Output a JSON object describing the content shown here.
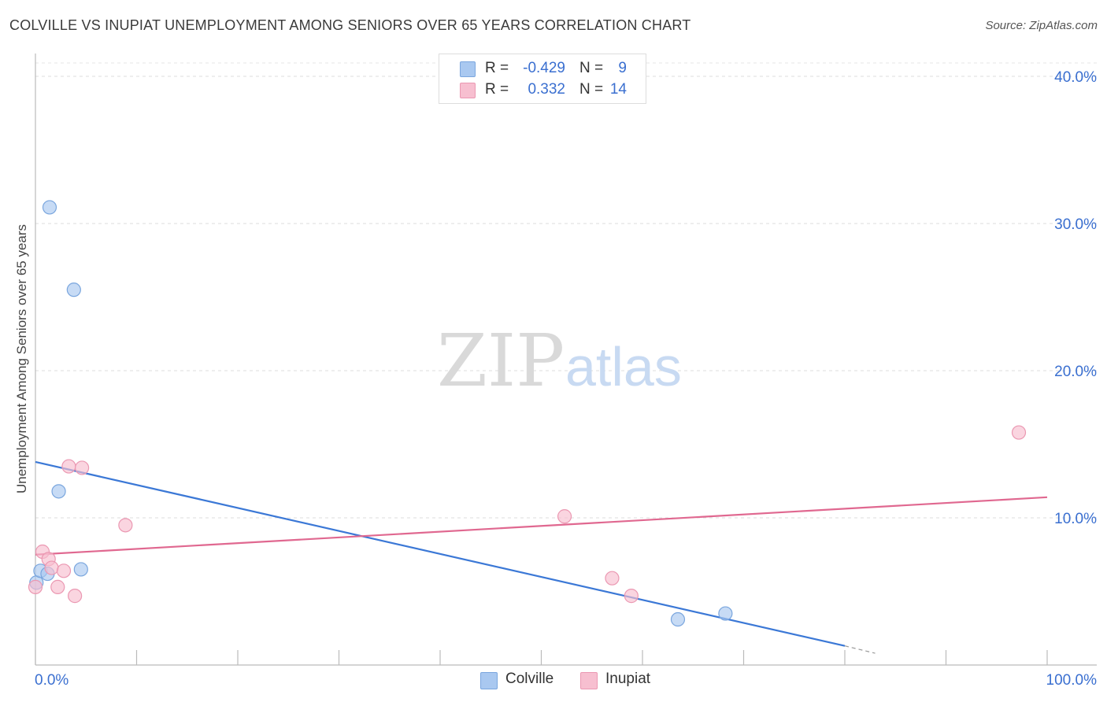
{
  "header": {
    "title": "COLVILLE VS INUPIAT UNEMPLOYMENT AMONG SENIORS OVER 65 YEARS CORRELATION CHART",
    "source": "Source: ZipAtlas.com"
  },
  "watermark": {
    "zip": "ZIP",
    "atlas": "atlas"
  },
  "legend_top": [
    {
      "r_label": "R =",
      "r_value": "-0.429",
      "n_label": "N =",
      "n_value": "9",
      "color": "#a9c8f0",
      "border": "#7aa6de"
    },
    {
      "r_label": "R =",
      "r_value": "0.332",
      "n_label": "N =",
      "n_value": "14",
      "color": "#f7bfd0",
      "border": "#eb98b2"
    }
  ],
  "legend_bottom": [
    {
      "label": "Colville",
      "color": "#a9c8f0",
      "border": "#7aa6de"
    },
    {
      "label": "Inupiat",
      "color": "#f7bfd0",
      "border": "#eb98b2"
    }
  ],
  "chart_data": {
    "type": "scatter",
    "title": "COLVILLE VS INUPIAT UNEMPLOYMENT AMONG SENIORS OVER 65 YEARS CORRELATION CHART",
    "xlabel": "",
    "ylabel": "Unemployment Among Seniors over 65 years",
    "xlim": [
      0,
      100
    ],
    "ylim": [
      0,
      40
    ],
    "x_tick_labels": [
      "0.0%",
      "100.0%"
    ],
    "y_ticks": [
      10,
      20,
      30,
      40
    ],
    "y_tick_labels": [
      "10.0%",
      "20.0%",
      "30.0%",
      "40.0%"
    ],
    "grid": "horizontal dashed",
    "legend_position": "top-center and bottom",
    "series": [
      {
        "name": "Colville",
        "color": "#a9c8f0",
        "stroke": "#7aa6de",
        "line_color": "#3b78d6",
        "points": [
          [
            0.1,
            5.6
          ],
          [
            0.5,
            6.4
          ],
          [
            1.2,
            6.2
          ],
          [
            1.4,
            31.1
          ],
          [
            2.3,
            11.8
          ],
          [
            3.8,
            25.5
          ],
          [
            4.5,
            6.5
          ],
          [
            63.5,
            3.1
          ],
          [
            68.2,
            3.5
          ]
        ],
        "trend": {
          "x0": 0,
          "y0": 13.8,
          "x1": 80,
          "y1": 1.3,
          "dash_x1": 83,
          "dash_y1": 0.8
        }
      },
      {
        "name": "Inupiat",
        "color": "#f7bfd0",
        "stroke": "#eb98b2",
        "line_color": "#e06890",
        "points": [
          [
            0.0,
            5.3
          ],
          [
            0.7,
            7.7
          ],
          [
            1.3,
            7.2
          ],
          [
            1.6,
            6.6
          ],
          [
            2.2,
            5.3
          ],
          [
            2.8,
            6.4
          ],
          [
            3.3,
            13.5
          ],
          [
            3.9,
            4.7
          ],
          [
            4.6,
            13.4
          ],
          [
            8.9,
            9.5
          ],
          [
            52.3,
            10.1
          ],
          [
            57.0,
            5.9
          ],
          [
            58.9,
            4.7
          ],
          [
            97.2,
            15.8
          ]
        ],
        "trend": {
          "x0": 0,
          "y0": 7.5,
          "x1": 100,
          "y1": 11.4
        }
      }
    ]
  }
}
